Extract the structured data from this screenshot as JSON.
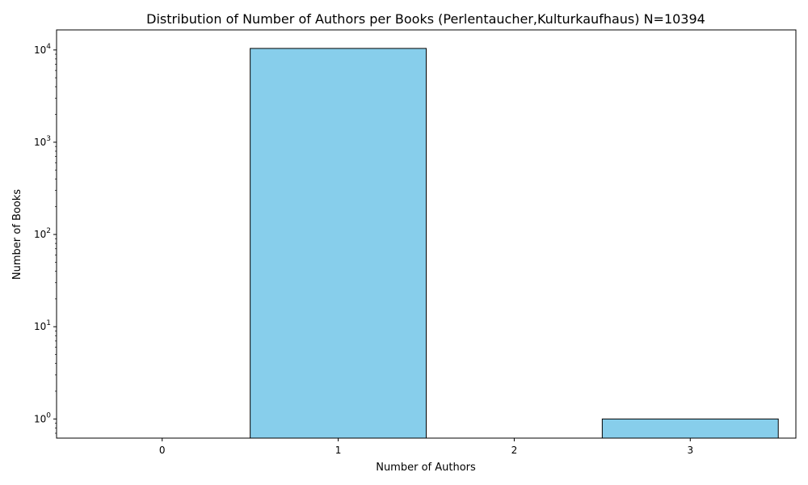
{
  "chart_data": {
    "type": "bar",
    "title": "Distribution of Number of Authors per Books (Perlentaucher,Kulturkaufhaus) N=10394",
    "xlabel": "Number of Authors",
    "ylabel": "Number of Books",
    "categories": [
      "0",
      "1",
      "2",
      "3"
    ],
    "values": [
      0,
      10393,
      0,
      1
    ],
    "y_scale": "log",
    "ylim": [
      0.62,
      16500
    ],
    "y_ticks": [
      {
        "value": 1,
        "base": "10",
        "exp": "0"
      },
      {
        "value": 10,
        "base": "10",
        "exp": "1"
      },
      {
        "value": 100,
        "base": "10",
        "exp": "2"
      },
      {
        "value": 1000,
        "base": "10",
        "exp": "3"
      },
      {
        "value": 10000,
        "base": "10",
        "exp": "4"
      }
    ],
    "grid": false,
    "colors": {
      "bar_fill": "#87ceeb",
      "bar_edge": "#000000"
    }
  }
}
